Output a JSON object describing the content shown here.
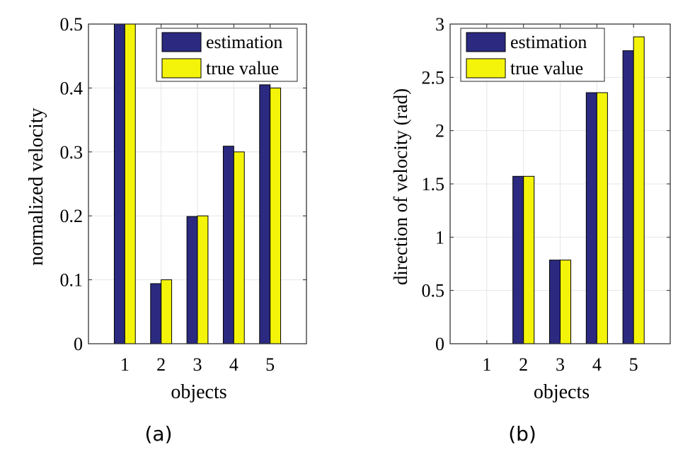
{
  "chart_data": [
    {
      "type": "bar",
      "categories": [
        "1",
        "2",
        "3",
        "4",
        "5"
      ],
      "series": [
        {
          "name": "estimation",
          "values": [
            0.5,
            0.094,
            0.199,
            0.309,
            0.405
          ],
          "color": "#2b2a80"
        },
        {
          "name": "true value",
          "values": [
            0.5,
            0.1,
            0.2,
            0.3,
            0.4
          ],
          "color": "#f4f40a"
        }
      ],
      "title": "",
      "xlabel": "objects",
      "ylabel": "normalized velocity",
      "ylim": [
        0,
        0.5
      ],
      "yticks": [
        "0",
        "0.1",
        "0.2",
        "0.3",
        "0.4",
        "0.5"
      ],
      "grid": true,
      "legend": "top-right",
      "caption": "(a)"
    },
    {
      "type": "bar",
      "categories": [
        "1",
        "2",
        "3",
        "4",
        "5"
      ],
      "series": [
        {
          "name": "estimation",
          "values": [
            0,
            1.571,
            0.785,
            2.356,
            2.75
          ],
          "color": "#2b2a80"
        },
        {
          "name": "true value",
          "values": [
            0,
            1.571,
            0.785,
            2.356,
            2.88
          ],
          "color": "#f4f40a"
        }
      ],
      "title": "",
      "xlabel": "objects",
      "ylabel": "direction of velocity (rad)",
      "ylim": [
        0,
        3
      ],
      "yticks": [
        "0",
        "0.5",
        "1",
        "1.5",
        "2",
        "2.5",
        "3"
      ],
      "grid": true,
      "legend": "top-right",
      "caption": "(b)"
    }
  ]
}
